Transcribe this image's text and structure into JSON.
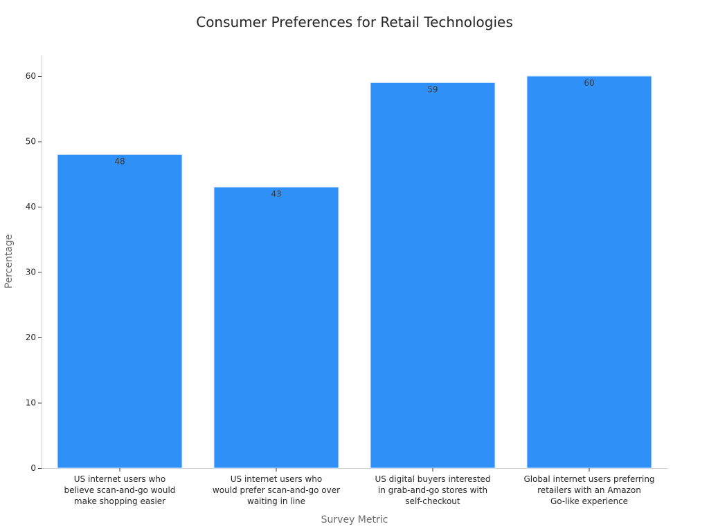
{
  "chart_data": {
    "type": "bar",
    "title": "Consumer Preferences for Retail Technologies",
    "xlabel": "Survey Metric",
    "ylabel": "Percentage",
    "ylim": [
      0,
      63
    ],
    "yticks": [
      0,
      10,
      20,
      30,
      40,
      50,
      60
    ],
    "grid": false,
    "legend": "none",
    "bar_color": "#2f91f8",
    "categories": [
      [
        "US internet users who",
        "believe scan-and-go would",
        "make shopping easier"
      ],
      [
        "US internet users who",
        "would prefer scan-and-go over",
        "waiting in line"
      ],
      [
        "US digital buyers interested",
        "in grab-and-go stores with",
        "self-checkout"
      ],
      [
        "Global internet users preferring",
        "retailers with an Amazon",
        "Go-like experience"
      ]
    ],
    "values": [
      48,
      43,
      59,
      60
    ],
    "data_labels": [
      "48",
      "43",
      "59",
      "60"
    ]
  }
}
